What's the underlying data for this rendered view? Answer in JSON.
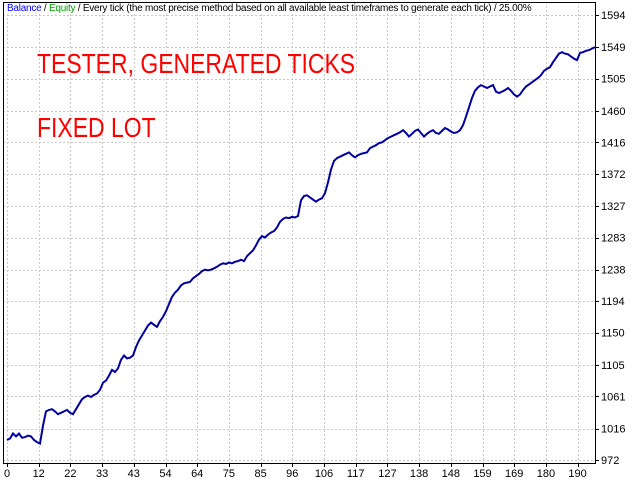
{
  "header": {
    "balance_label": "Balance",
    "sep1": " / ",
    "equity_label": "Equity",
    "rest": " / Every tick (the most precise method based on all available least timeframes to generate each tick) / 25.00%"
  },
  "annotations": {
    "line1": "TESTER, GENERATED TICKS",
    "line2": "FIXED LOT"
  },
  "colors": {
    "balance_line": "#0000a0",
    "balance_label_color": "#0000ff",
    "equity_label_color": "#00a000",
    "annotation_color": "#ff0000",
    "grid_color": "#c9c9c9",
    "axis_color": "#000000",
    "background": "#ffffff"
  },
  "chart_data": {
    "type": "line",
    "x_axis_ticks": [
      0,
      12,
      22,
      33,
      43,
      54,
      64,
      75,
      85,
      96,
      106,
      117,
      127,
      138,
      148,
      159,
      169,
      180,
      190
    ],
    "y_axis_ticks": [
      1594,
      1549,
      1505,
      1460,
      1416,
      1372,
      1327,
      1283,
      1238,
      1194,
      1150,
      1105,
      1061,
      1016,
      972
    ],
    "xlim": [
      0,
      196
    ],
    "ylim": [
      972,
      1594
    ],
    "grid": "dashed",
    "legend_position": "none",
    "series": [
      {
        "name": "Balance",
        "color": "#0000a0",
        "x_start": 0,
        "x_step": 1,
        "values": [
          1000,
          1002,
          1009,
          1005,
          1009,
          1003,
          1004,
          1006,
          1005,
          1000,
          997,
          995,
          1020,
          1040,
          1042,
          1043,
          1040,
          1036,
          1038,
          1040,
          1042,
          1038,
          1036,
          1043,
          1050,
          1057,
          1060,
          1062,
          1060,
          1063,
          1065,
          1070,
          1080,
          1083,
          1090,
          1098,
          1095,
          1100,
          1112,
          1118,
          1114,
          1115,
          1118,
          1130,
          1139,
          1146,
          1153,
          1160,
          1164,
          1161,
          1158,
          1166,
          1172,
          1180,
          1190,
          1200,
          1206,
          1210,
          1216,
          1219,
          1220,
          1221,
          1226,
          1229,
          1232,
          1236,
          1238,
          1237,
          1238,
          1240,
          1242,
          1245,
          1247,
          1246,
          1248,
          1247,
          1249,
          1250,
          1252,
          1250,
          1257,
          1261,
          1265,
          1272,
          1280,
          1285,
          1283,
          1287,
          1290,
          1292,
          1297,
          1305,
          1309,
          1311,
          1310,
          1312,
          1311,
          1313,
          1335,
          1341,
          1342,
          1339,
          1336,
          1333,
          1336,
          1338,
          1345,
          1360,
          1378,
          1390,
          1394,
          1396,
          1398,
          1400,
          1402,
          1398,
          1395,
          1398,
          1400,
          1401,
          1402,
          1408,
          1410,
          1412,
          1415,
          1416,
          1419,
          1422,
          1424,
          1426,
          1428,
          1430,
          1433,
          1429,
          1424,
          1428,
          1432,
          1434,
          1429,
          1424,
          1428,
          1431,
          1433,
          1429,
          1428,
          1432,
          1436,
          1434,
          1431,
          1429,
          1430,
          1433,
          1440,
          1452,
          1465,
          1478,
          1488,
          1493,
          1496,
          1494,
          1492,
          1494,
          1496,
          1487,
          1485,
          1487,
          1489,
          1492,
          1488,
          1483,
          1480,
          1483,
          1489,
          1494,
          1497,
          1500,
          1503,
          1506,
          1510,
          1516,
          1519,
          1521,
          1528,
          1534,
          1540,
          1542,
          1540,
          1539,
          1536,
          1533,
          1531,
          1541,
          1542,
          1544,
          1545,
          1547,
          1549
        ]
      }
    ]
  }
}
